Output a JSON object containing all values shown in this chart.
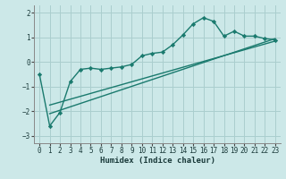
{
  "x": [
    0,
    1,
    2,
    3,
    4,
    5,
    6,
    7,
    8,
    9,
    10,
    11,
    12,
    13,
    14,
    15,
    16,
    17,
    18,
    19,
    20,
    21,
    22,
    23
  ],
  "line1": [
    -0.5,
    -2.6,
    -2.05,
    -0.8,
    -0.3,
    -0.25,
    -0.3,
    -0.25,
    -0.2,
    -0.1,
    0.25,
    0.35,
    0.4,
    0.7,
    1.1,
    1.55,
    1.8,
    1.65,
    1.05,
    1.25,
    1.05,
    1.05,
    0.95,
    0.9
  ],
  "line2_x": [
    1,
    23
  ],
  "line2_y": [
    -2.1,
    0.95
  ],
  "line3_x": [
    1,
    23
  ],
  "line3_y": [
    -1.75,
    0.85
  ],
  "color": "#1a7a6e",
  "bg_color": "#cce8e8",
  "grid_color": "#aacece",
  "xlabel": "Humidex (Indice chaleur)",
  "xlim": [
    -0.5,
    23.5
  ],
  "ylim": [
    -3.3,
    2.3
  ],
  "yticks": [
    -3,
    -2,
    -1,
    0,
    1,
    2
  ],
  "xticks": [
    0,
    1,
    2,
    3,
    4,
    5,
    6,
    7,
    8,
    9,
    10,
    11,
    12,
    13,
    14,
    15,
    16,
    17,
    18,
    19,
    20,
    21,
    22,
    23
  ],
  "marker": "D",
  "markersize": 2.2,
  "linewidth": 1.0,
  "tick_fontsize": 5.5,
  "xlabel_fontsize": 6.5
}
